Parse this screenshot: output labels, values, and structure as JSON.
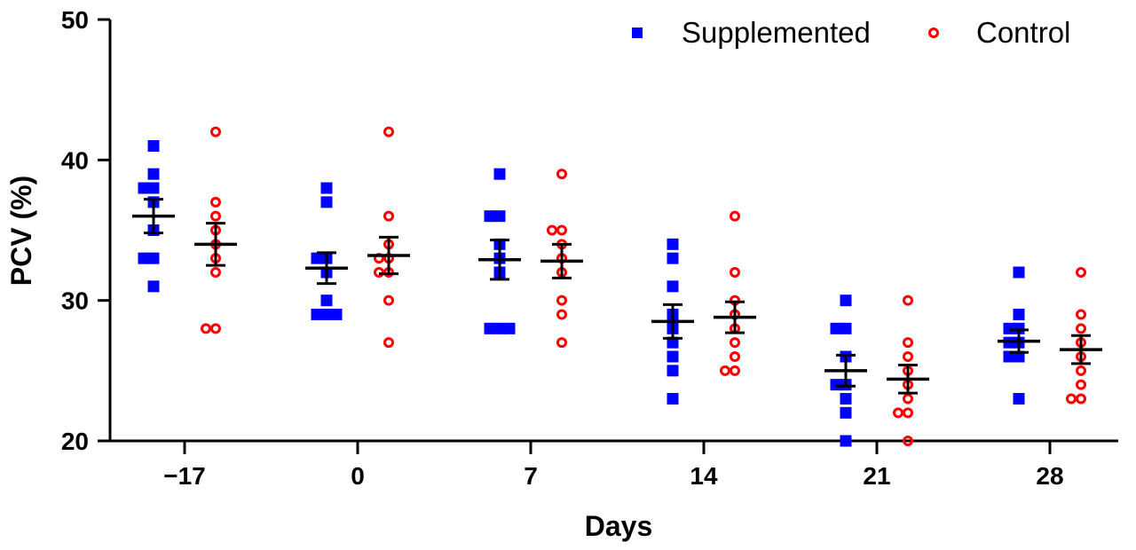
{
  "chart_data": {
    "type": "scatter",
    "title": "",
    "xlabel": "Days",
    "ylabel": "PCV (%)",
    "ylim": [
      20,
      50
    ],
    "yticks": [
      20,
      30,
      40,
      50
    ],
    "categories": [
      "−17",
      "0",
      "7",
      "14",
      "21",
      "28"
    ],
    "legend_position": "top-right",
    "series": [
      {
        "name": "Supplemented",
        "marker": "filled-square",
        "color": "#0000ff",
        "points": [
          [
            41,
            39,
            38,
            38,
            37,
            35,
            33,
            33,
            31
          ],
          [
            38,
            37,
            33,
            33,
            32,
            30,
            29,
            29,
            29
          ],
          [
            39,
            36,
            36,
            34,
            33,
            32,
            28,
            28,
            28
          ],
          [
            34,
            33,
            31,
            29,
            28,
            27,
            26,
            25,
            23
          ],
          [
            30,
            28,
            28,
            26,
            24,
            24,
            23,
            22,
            20
          ],
          [
            32,
            29,
            28,
            28,
            27,
            27,
            26,
            26,
            23
          ]
        ],
        "mean": [
          36,
          32.3,
          32.9,
          28.5,
          25,
          27.1
        ],
        "sem": [
          1.2,
          1.1,
          1.4,
          1.2,
          1.1,
          0.8
        ]
      },
      {
        "name": "Control",
        "marker": "open-circle",
        "color": "#ff0000",
        "points": [
          [
            42,
            37,
            36,
            35,
            34,
            33,
            32,
            28,
            28
          ],
          [
            42,
            36,
            34,
            33,
            33,
            32,
            32,
            30,
            27
          ],
          [
            39,
            35,
            35,
            34,
            33,
            32,
            30,
            29,
            27
          ],
          [
            36,
            32,
            30,
            29,
            28,
            27,
            26,
            25,
            25
          ],
          [
            30,
            27,
            26,
            25,
            24,
            23,
            22,
            22,
            20
          ],
          [
            32,
            29,
            28,
            27,
            26,
            25,
            24,
            23,
            23
          ]
        ],
        "mean": [
          34,
          33.2,
          32.8,
          28.8,
          24.4,
          26.5
        ],
        "sem": [
          1.5,
          1.3,
          1.2,
          1.1,
          1.0,
          1.0
        ]
      }
    ]
  }
}
